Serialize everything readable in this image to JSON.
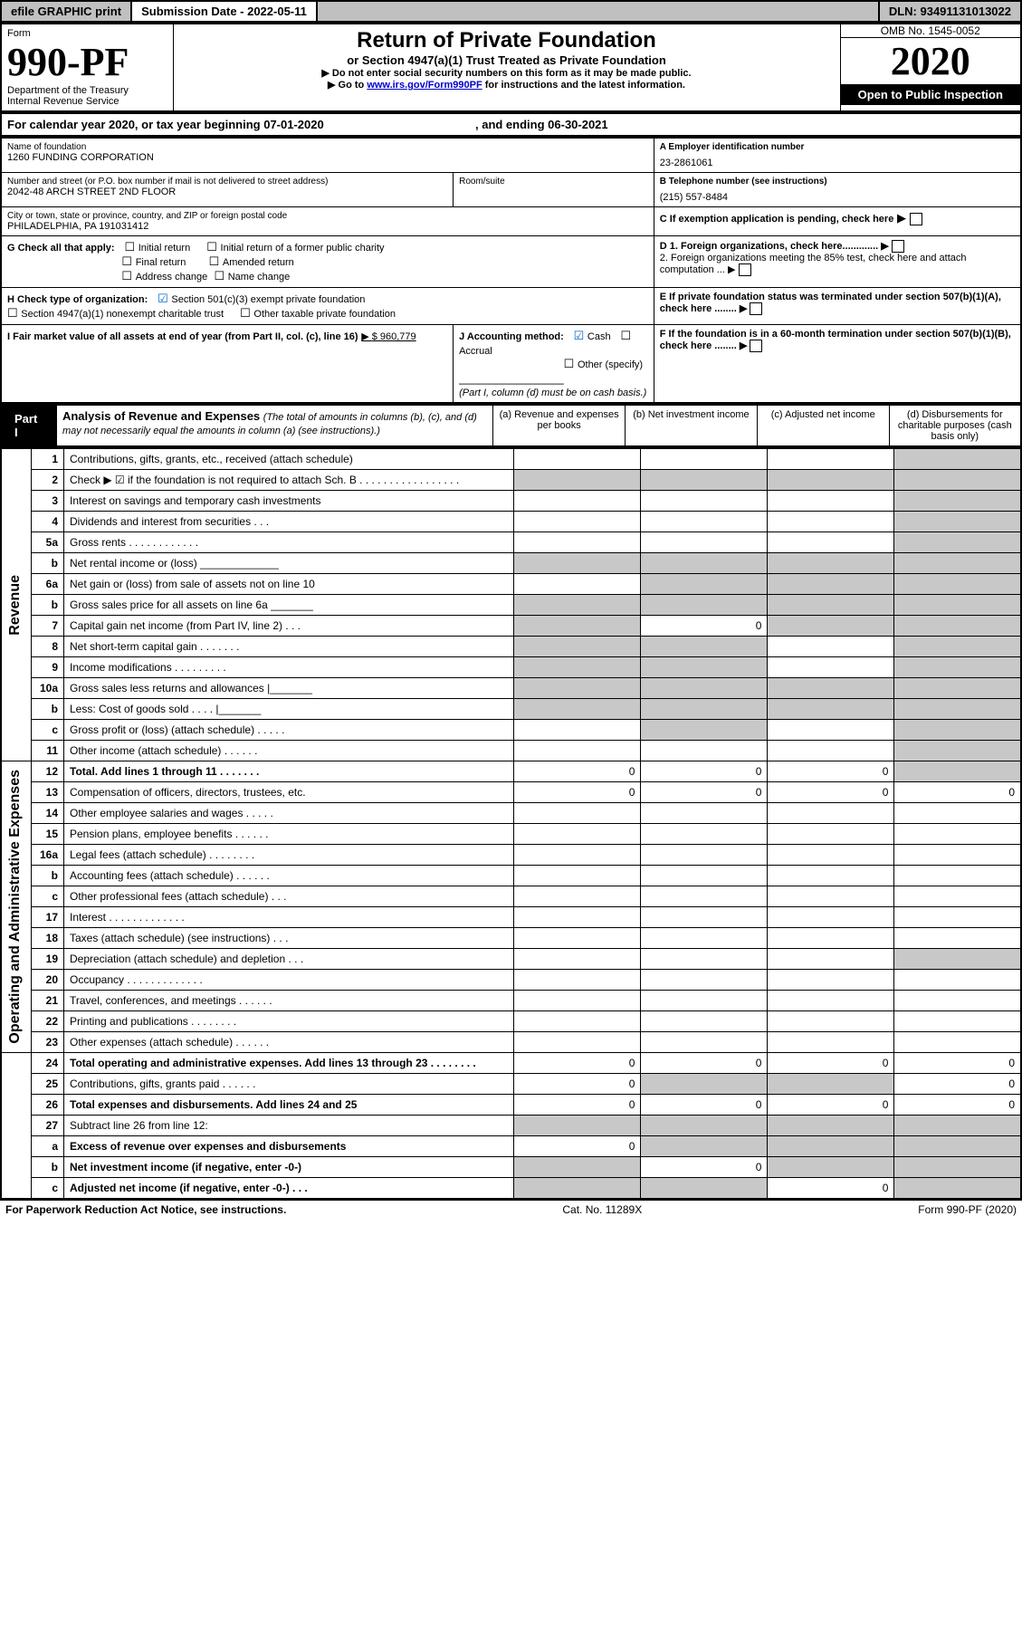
{
  "topbar": {
    "efile": "efile GRAPHIC print",
    "subLabel": "Submission Date - 2022-05-11",
    "dln": "DLN: 93491131013022"
  },
  "header": {
    "formWord": "Form",
    "formNo": "990-PF",
    "dept": "Department of the Treasury",
    "irs": "Internal Revenue Service",
    "title": "Return of Private Foundation",
    "subtitle": "or Section 4947(a)(1) Trust Treated as Private Foundation",
    "warn": "Do not enter social security numbers on this form as it may be made public.",
    "goto1": "Go to ",
    "gotoLink": "www.irs.gov/Form990PF",
    "goto2": " for instructions and the latest information.",
    "omb": "OMB No. 1545-0052",
    "year": "2020",
    "openpub": "Open to Public Inspection"
  },
  "cal": {
    "line": "For calendar year 2020, or tax year beginning 07-01-2020",
    "end": ", and ending 06-30-2021"
  },
  "id": {
    "nameLbl": "Name of foundation",
    "name": "1260 FUNDING CORPORATION",
    "addrLbl": "Number and street (or P.O. box number if mail is not delivered to street address)",
    "addr": "2042-48 ARCH STREET 2ND FLOOR",
    "roomLbl": "Room/suite",
    "cityLbl": "City or town, state or province, country, and ZIP or foreign postal code",
    "city": "PHILADELPHIA, PA  191031412",
    "einLbl": "A Employer identification number",
    "ein": "23-2861061",
    "telLbl": "B Telephone number (see instructions)",
    "tel": "(215) 557-8484",
    "cLbl": "C If exemption application is pending, check here",
    "d1": "D 1. Foreign organizations, check here.............",
    "d2": "2. Foreign organizations meeting the 85% test, check here and attach computation ...",
    "eLbl": "E If private foundation status was terminated under section 507(b)(1)(A), check here ........",
    "fLbl": "F If the foundation is in a 60-month termination under section 507(b)(1)(B), check here ........"
  },
  "g": {
    "lbl": "G Check all that apply:",
    "initial": "Initial return",
    "initialFormer": "Initial return of a former public charity",
    "final": "Final return",
    "amended": "Amended return",
    "addrchg": "Address change",
    "namechg": "Name change"
  },
  "h": {
    "lbl": "H Check type of organization:",
    "s501": "Section 501(c)(3) exempt private foundation",
    "s4947": "Section 4947(a)(1) nonexempt charitable trust",
    "other": "Other taxable private foundation"
  },
  "i": {
    "lbl": "I Fair market value of all assets at end of year (from Part II, col. (c), line 16)",
    "val": "$  960,779"
  },
  "j": {
    "lbl": "J Accounting method:",
    "cash": "Cash",
    "accrual": "Accrual",
    "other": "Other (specify)",
    "note": "(Part I, column (d) must be on cash basis.)"
  },
  "part1": {
    "hdr": "Part I",
    "title": "Analysis of Revenue and Expenses",
    "note": "(The total of amounts in columns (b), (c), and (d) may not necessarily equal the amounts in column (a) (see instructions).)",
    "cols": {
      "a": "(a) Revenue and expenses per books",
      "b": "(b) Net investment income",
      "c": "(c) Adjusted net income",
      "d": "(d) Disbursements for charitable purposes (cash basis only)"
    },
    "rowgroups": {
      "revenue": "Revenue",
      "opexp": "Operating and Administrative Expenses"
    }
  },
  "rows": [
    {
      "n": "1",
      "t": "Contributions, gifts, grants, etc., received (attach schedule)",
      "a": "",
      "b": "",
      "c": "",
      "d": "",
      "shade": [
        "d"
      ]
    },
    {
      "n": "2",
      "t": "Check ▶ ☑ if the foundation is not required to attach Sch. B  . . . . . . . . . . . . . . . . .",
      "a": "",
      "b": "",
      "c": "",
      "d": "",
      "shade": [
        "a",
        "b",
        "c",
        "d"
      ]
    },
    {
      "n": "3",
      "t": "Interest on savings and temporary cash investments",
      "a": "",
      "b": "",
      "c": "",
      "d": "",
      "shade": [
        "d"
      ]
    },
    {
      "n": "4",
      "t": "Dividends and interest from securities  .  .  .",
      "a": "",
      "b": "",
      "c": "",
      "d": "",
      "shade": [
        "d"
      ]
    },
    {
      "n": "5a",
      "t": "Gross rents  . . . . . . . . . . . .",
      "a": "",
      "b": "",
      "c": "",
      "d": "",
      "shade": [
        "d"
      ]
    },
    {
      "n": "b",
      "t": "Net rental income or (loss)  _____________",
      "a": "",
      "b": "",
      "c": "",
      "d": "",
      "shade": [
        "a",
        "b",
        "c",
        "d"
      ]
    },
    {
      "n": "6a",
      "t": "Net gain or (loss) from sale of assets not on line 10",
      "a": "",
      "b": "",
      "c": "",
      "d": "",
      "shade": [
        "b",
        "c",
        "d"
      ]
    },
    {
      "n": "b",
      "t": "Gross sales price for all assets on line 6a _______",
      "a": "",
      "b": "",
      "c": "",
      "d": "",
      "shade": [
        "a",
        "b",
        "c",
        "d"
      ]
    },
    {
      "n": "7",
      "t": "Capital gain net income (from Part IV, line 2)  .  .  .",
      "a": "",
      "b": "0",
      "c": "",
      "d": "",
      "shade": [
        "a",
        "c",
        "d"
      ]
    },
    {
      "n": "8",
      "t": "Net short-term capital gain  . . . . . . .",
      "a": "",
      "b": "",
      "c": "",
      "d": "",
      "shade": [
        "a",
        "b",
        "d"
      ]
    },
    {
      "n": "9",
      "t": "Income modifications  . . . . . . . . .",
      "a": "",
      "b": "",
      "c": "",
      "d": "",
      "shade": [
        "a",
        "b",
        "d"
      ]
    },
    {
      "n": "10a",
      "t": "Gross sales less returns and allowances  |_______",
      "a": "",
      "b": "",
      "c": "",
      "d": "",
      "shade": [
        "a",
        "b",
        "c",
        "d"
      ]
    },
    {
      "n": "b",
      "t": "Less: Cost of goods sold  .  .  .  .   |_______",
      "a": "",
      "b": "",
      "c": "",
      "d": "",
      "shade": [
        "a",
        "b",
        "c",
        "d"
      ]
    },
    {
      "n": "c",
      "t": "Gross profit or (loss) (attach schedule)  . . . . .",
      "a": "",
      "b": "",
      "c": "",
      "d": "",
      "shade": [
        "b",
        "d"
      ]
    },
    {
      "n": "11",
      "t": "Other income (attach schedule)  . . . . . .",
      "a": "",
      "b": "",
      "c": "",
      "d": "",
      "shade": [
        "d"
      ]
    },
    {
      "n": "12",
      "t": "Total. Add lines 1 through 11  . . . . . . .",
      "a": "0",
      "b": "0",
      "c": "0",
      "d": "",
      "shade": [
        "d"
      ],
      "bold": true
    },
    {
      "n": "13",
      "t": "Compensation of officers, directors, trustees, etc.",
      "a": "0",
      "b": "0",
      "c": "0",
      "d": "0"
    },
    {
      "n": "14",
      "t": "Other employee salaries and wages  . . . . .",
      "a": "",
      "b": "",
      "c": "",
      "d": ""
    },
    {
      "n": "15",
      "t": "Pension plans, employee benefits  . . . . . .",
      "a": "",
      "b": "",
      "c": "",
      "d": ""
    },
    {
      "n": "16a",
      "t": "Legal fees (attach schedule) . . . . . . . .",
      "a": "",
      "b": "",
      "c": "",
      "d": ""
    },
    {
      "n": "b",
      "t": "Accounting fees (attach schedule) . . . . . .",
      "a": "",
      "b": "",
      "c": "",
      "d": ""
    },
    {
      "n": "c",
      "t": "Other professional fees (attach schedule)  .  .  .",
      "a": "",
      "b": "",
      "c": "",
      "d": ""
    },
    {
      "n": "17",
      "t": "Interest  . . . . . . . . . . . . .",
      "a": "",
      "b": "",
      "c": "",
      "d": ""
    },
    {
      "n": "18",
      "t": "Taxes (attach schedule) (see instructions)  .  .  .",
      "a": "",
      "b": "",
      "c": "",
      "d": ""
    },
    {
      "n": "19",
      "t": "Depreciation (attach schedule) and depletion  .  .  .",
      "a": "",
      "b": "",
      "c": "",
      "d": "",
      "shade": [
        "d"
      ]
    },
    {
      "n": "20",
      "t": "Occupancy . . . . . . . . . . . . .",
      "a": "",
      "b": "",
      "c": "",
      "d": ""
    },
    {
      "n": "21",
      "t": "Travel, conferences, and meetings . . . . . .",
      "a": "",
      "b": "",
      "c": "",
      "d": ""
    },
    {
      "n": "22",
      "t": "Printing and publications . . . . . . . .",
      "a": "",
      "b": "",
      "c": "",
      "d": ""
    },
    {
      "n": "23",
      "t": "Other expenses (attach schedule) . . . . . .",
      "a": "",
      "b": "",
      "c": "",
      "d": ""
    },
    {
      "n": "24",
      "t": "Total operating and administrative expenses. Add lines 13 through 23  . . . . . . . .",
      "a": "0",
      "b": "0",
      "c": "0",
      "d": "0",
      "bold": true
    },
    {
      "n": "25",
      "t": "Contributions, gifts, grants paid  . . . . . .",
      "a": "0",
      "b": "",
      "c": "",
      "d": "0",
      "shade": [
        "b",
        "c"
      ]
    },
    {
      "n": "26",
      "t": "Total expenses and disbursements. Add lines 24 and 25",
      "a": "0",
      "b": "0",
      "c": "0",
      "d": "0",
      "bold": true
    },
    {
      "n": "27",
      "t": "Subtract line 26 from line 12:",
      "a": "",
      "b": "",
      "c": "",
      "d": "",
      "shade": [
        "a",
        "b",
        "c",
        "d"
      ]
    },
    {
      "n": "a",
      "t": "Excess of revenue over expenses and disbursements",
      "a": "0",
      "b": "",
      "c": "",
      "d": "",
      "shade": [
        "b",
        "c",
        "d"
      ],
      "bold": true
    },
    {
      "n": "b",
      "t": "Net investment income (if negative, enter -0-)",
      "a": "",
      "b": "0",
      "c": "",
      "d": "",
      "shade": [
        "a",
        "c",
        "d"
      ],
      "bold": true
    },
    {
      "n": "c",
      "t": "Adjusted net income (if negative, enter -0-)  .  .  .",
      "a": "",
      "b": "",
      "c": "0",
      "d": "",
      "shade": [
        "a",
        "b",
        "d"
      ],
      "bold": true
    }
  ],
  "footer": {
    "left": "For Paperwork Reduction Act Notice, see instructions.",
    "mid": "Cat. No. 11289X",
    "right": "Form 990-PF (2020)"
  }
}
